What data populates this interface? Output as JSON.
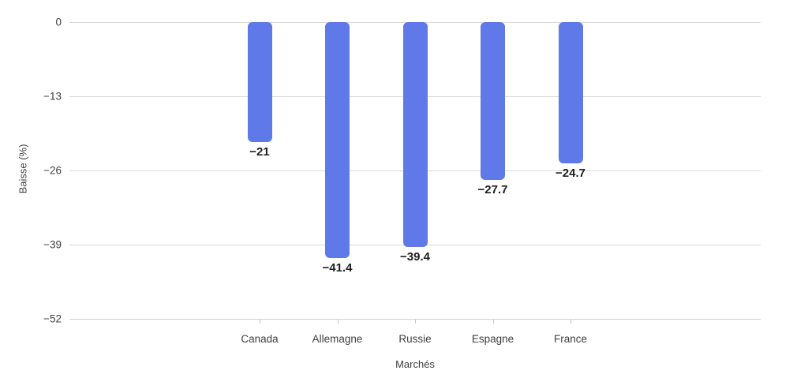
{
  "chart_data": {
    "type": "bar",
    "title": "",
    "categories": [
      "Canada",
      "Allemagne",
      "Russie",
      "Espagne",
      "France"
    ],
    "values": [
      -21,
      -41.4,
      -39.4,
      -27.7,
      -24.7
    ],
    "data_labels": [
      "−21",
      "−41.4",
      "−39.4",
      "−27.7",
      "−24.7"
    ],
    "xlabel": "Marchés",
    "ylabel": "Baisse (%)",
    "ylim": [
      -52,
      0
    ],
    "yticks": [
      0,
      -13,
      -26,
      -39,
      -52
    ],
    "ytick_labels": [
      "0",
      "−13",
      "−26",
      "−39",
      "−52"
    ],
    "grid": true,
    "legend": "none",
    "bar_color": "#5F7AE8",
    "gridline_color": "#d9d9d9",
    "axis_line_color": "#cfcfcf",
    "tick_mark_color": "#c6c6c6",
    "axis_text_color": "#3f3f3f",
    "data_label_color": "#1f1f1f",
    "background_color": "#ffffff"
  }
}
